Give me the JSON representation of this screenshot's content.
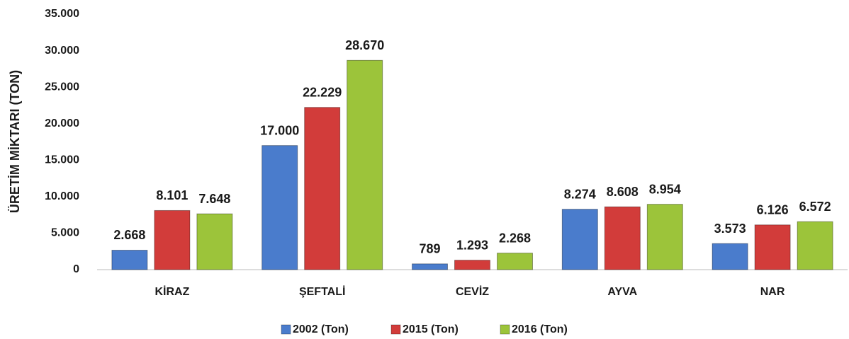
{
  "chart_data": {
    "type": "bar",
    "y_label": "ÜRETİM MİKTARI (TON)",
    "categories": [
      "KİRAZ",
      "ŞEFTALİ",
      "CEVİZ",
      "AYVA",
      "NAR"
    ],
    "series": [
      {
        "name": "2002 (Ton)",
        "color": "#4a7ccc",
        "values": [
          2668,
          17000,
          789,
          8274,
          3573
        ],
        "value_labels": [
          "2.668",
          "17.000",
          "789",
          "8.274",
          "3.573"
        ]
      },
      {
        "name": "2015 (Ton)",
        "color": "#d23c3a",
        "values": [
          8101,
          22229,
          1293,
          8608,
          6126
        ],
        "value_labels": [
          "8.101",
          "22.229",
          "1.293",
          "8.608",
          "6.126"
        ]
      },
      {
        "name": "2016 (Ton)",
        "color": "#9cc43a",
        "values": [
          7648,
          28670,
          2268,
          8954,
          6572
        ],
        "value_labels": [
          "7.648",
          "28.670",
          "2.268",
          "8.954",
          "6.572"
        ]
      }
    ],
    "ylim": [
      0,
      35000
    ],
    "yticks": [
      0,
      {
        "value": 5000,
        "label": "5.000"
      },
      {
        "value": 10000,
        "label": "10.000"
      },
      {
        "value": 15000,
        "label": "15.000"
      },
      {
        "value": 20000,
        "label": "20.000"
      },
      {
        "value": 25000,
        "label": "25.000"
      },
      {
        "value": 30000,
        "label": "30.000"
      },
      {
        "value": 35000,
        "label": "35.000"
      }
    ],
    "grid": false,
    "legend": "bottom"
  }
}
